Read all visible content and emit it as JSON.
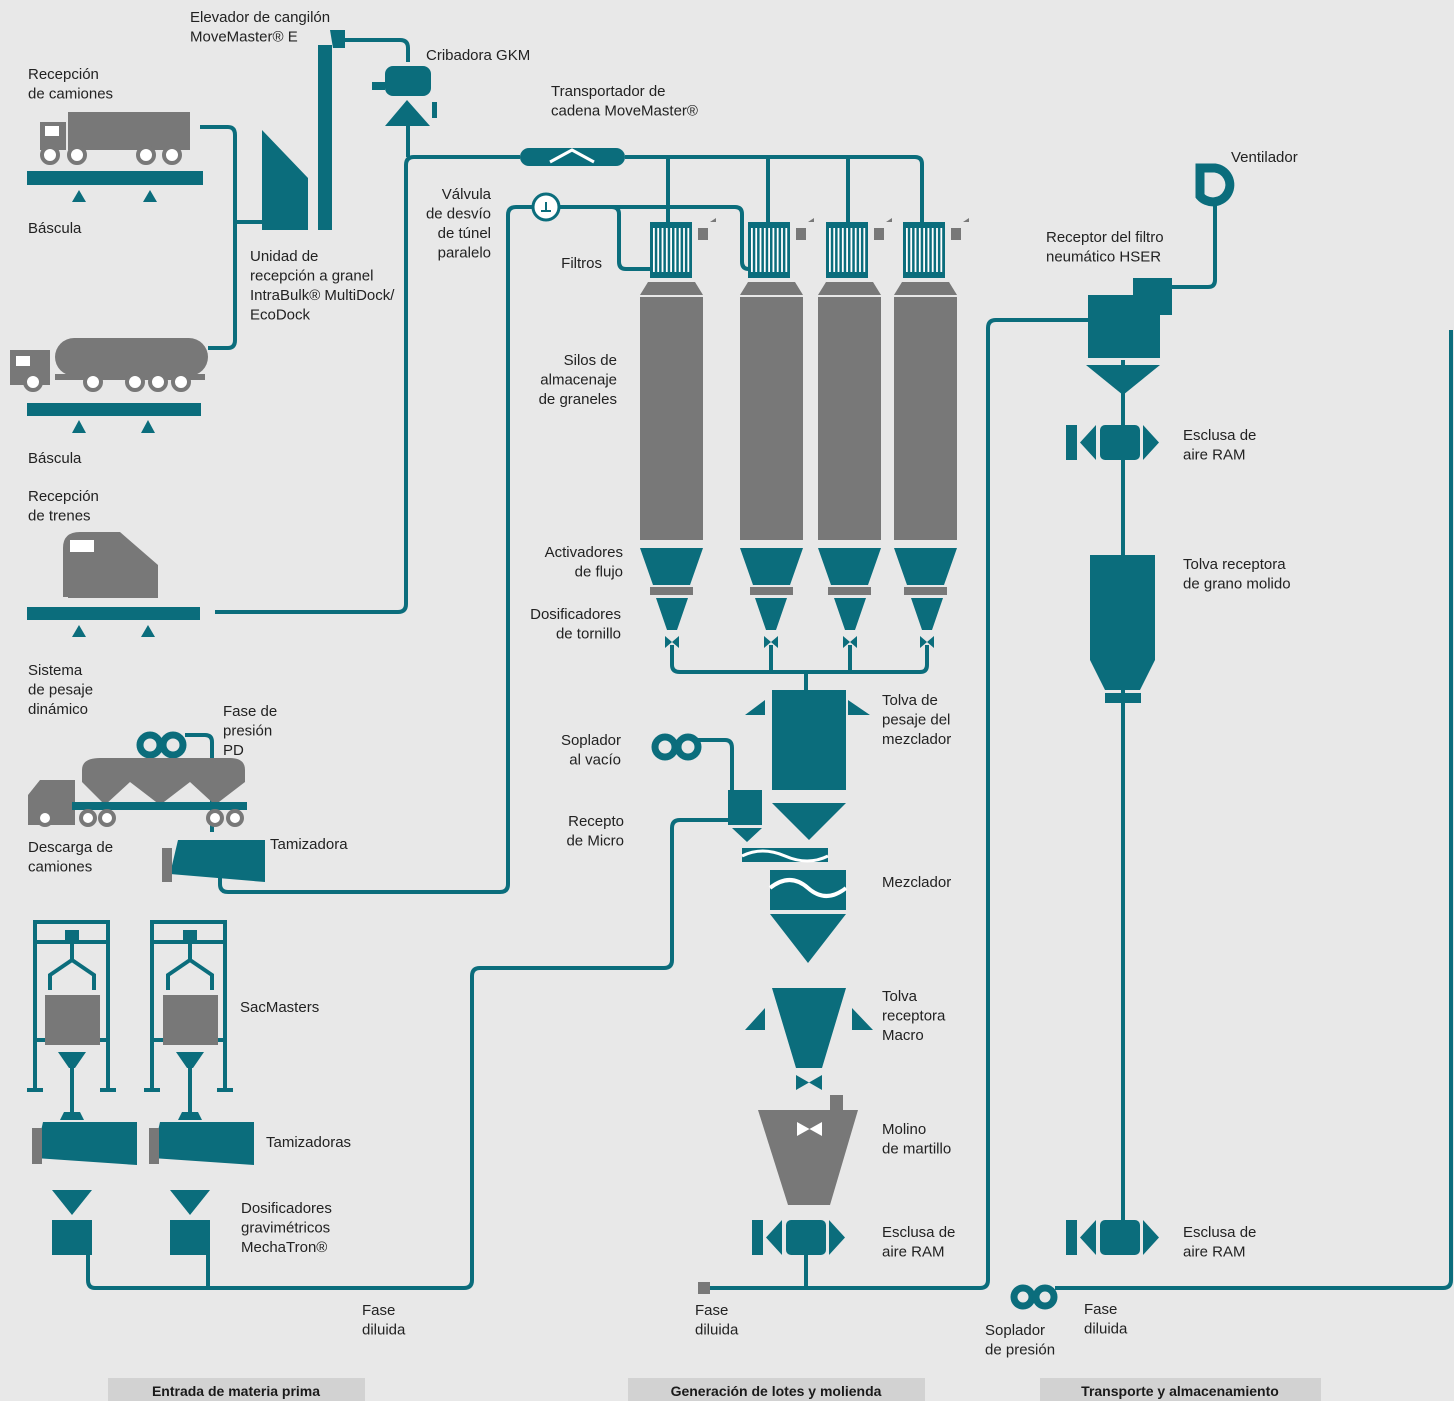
{
  "labels": [
    {
      "lines": [
        "Elevador de cangilón",
        "MoveMaster® E"
      ]
    },
    {
      "lines": [
        "Cribadora GKM"
      ]
    },
    {
      "lines": [
        "Recepción",
        "de camiones"
      ]
    },
    {
      "lines": [
        "Transportador de",
        "cadena MoveMaster®"
      ]
    },
    {
      "lines": [
        "Báscula"
      ]
    },
    {
      "lines": [
        "Válvula",
        "de desvío",
        "de túnel",
        "paralelo"
      ]
    },
    {
      "lines": [
        "Ventilador"
      ]
    },
    {
      "lines": [
        "Unidad de",
        "recepción a granel",
        "IntraBulk® MultiDock/",
        "EcoDock"
      ]
    },
    {
      "lines": [
        "Filtros"
      ]
    },
    {
      "lines": [
        "Receptor del filtro",
        "neumático HSER"
      ]
    },
    {
      "lines": [
        "Silos de",
        "almacenaje",
        "de graneles"
      ]
    },
    {
      "lines": [
        "Báscula"
      ]
    },
    {
      "lines": [
        "Esclusa de",
        "aire RAM"
      ]
    },
    {
      "lines": [
        "Recepción",
        "de trenes"
      ]
    },
    {
      "lines": [
        "Activadores",
        "de flujo"
      ]
    },
    {
      "lines": [
        "Tolva receptora",
        "de grano molido"
      ]
    },
    {
      "lines": [
        "Dosificadores",
        "de tornillo"
      ]
    },
    {
      "lines": [
        "Sistema",
        "de pesaje",
        "dinámico"
      ]
    },
    {
      "lines": [
        "Tolva de",
        "pesaje del",
        "mezclador"
      ]
    },
    {
      "lines": [
        "Fase de",
        "presión",
        "PD"
      ]
    },
    {
      "lines": [
        "Soplador",
        "al vacío"
      ]
    },
    {
      "lines": [
        "Recepto",
        "de Micro"
      ]
    },
    {
      "lines": [
        "Tamizadora"
      ]
    },
    {
      "lines": [
        "Descarga de",
        "camiones"
      ]
    },
    {
      "lines": [
        "Mezclador"
      ]
    },
    {
      "lines": [
        "Tolva",
        "receptora",
        "Macro"
      ]
    },
    {
      "lines": [
        "SacMasters"
      ]
    },
    {
      "lines": [
        "Molino",
        "de martillo"
      ]
    },
    {
      "lines": [
        "Tamizadoras"
      ]
    },
    {
      "lines": [
        "Dosificadores",
        "gravimétricos",
        "MechaTron®"
      ]
    },
    {
      "lines": [
        "Esclusa de",
        "aire RAM"
      ]
    },
    {
      "lines": [
        "Esclusa de",
        "aire RAM"
      ]
    },
    {
      "lines": [
        "Fase",
        "diluida"
      ]
    },
    {
      "lines": [
        "Fase",
        "diluida"
      ]
    },
    {
      "lines": [
        "Fase",
        "diluida"
      ]
    },
    {
      "lines": [
        "Soplador",
        "de presión"
      ]
    }
  ],
  "sections": [
    "Entrada de materia prima",
    "Generación de lotes y molienda",
    "Transporte y almacenamiento"
  ]
}
